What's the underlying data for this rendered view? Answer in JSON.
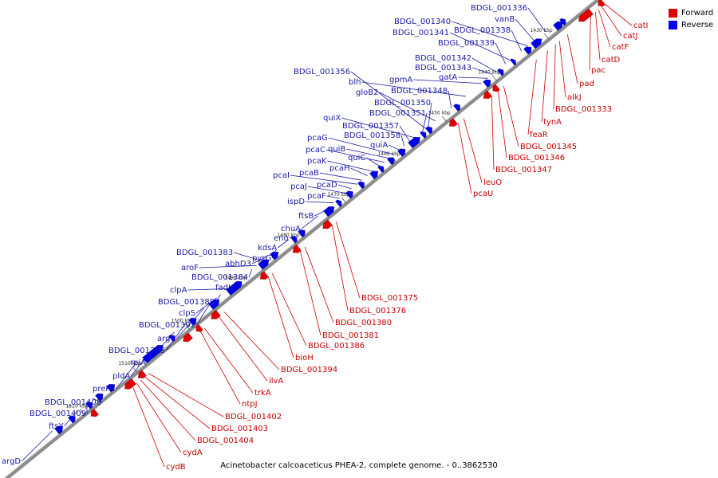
{
  "legend": {
    "items": [
      {
        "label": "Forward",
        "color": "#e00000"
      },
      {
        "label": "Reverse",
        "color": "#0000e6"
      }
    ]
  },
  "caption": "Acinetobacter calcoaceticus PHEA-2, complete genome. - 0..3862530",
  "colors": {
    "forward": "#e00000",
    "reverse": "#0000e6",
    "forward_line": "#d00000",
    "reverse_line": "#1a1aa6",
    "backbone": "#9a9a9a"
  },
  "ticks": [
    "1430 kbp",
    "1440 kbp",
    "1450 kbp",
    "1460 kbp",
    "1470 kbp",
    "1480 kbp",
    "1490 kbp",
    "1500 kbp",
    "1510 kbp",
    "1520 kbp"
  ],
  "reverse_labels": [
    "argD",
    "ftsY",
    "BDGL_001409",
    "BDGL_001408",
    "preP2",
    "pldA",
    "rpiA",
    "BDGL_001395",
    "argC",
    "BDGL_001392",
    "clpS",
    "BDGL_001389",
    "clpA",
    "fadH",
    "BDGL_001384",
    "aroF",
    "BDGL_001383",
    "abhD3",
    "pyrG",
    "kdsA",
    "eno",
    "chuA",
    "ftsB",
    "ispD",
    "pcaF",
    "pcaJ",
    "pcaD",
    "pcaI",
    "pcaB",
    "pcaH",
    "pcaK",
    "quiC",
    "pcaC",
    "quiB",
    "pcaG",
    "quiA",
    "BDGL_001358",
    "BDGL_001357",
    "quiX",
    "BDGL_001351",
    "BDGL_001350",
    "gloB2",
    "BDGL_001348",
    "blh",
    "gpmA",
    "BDGL_001356",
    "gatA",
    "BDGL_001343",
    "BDGL_001342",
    "BDGL_001339",
    "BDGL_001341",
    "BDGL_001338",
    "BDGL_001340",
    "vanB",
    "BDGL_001336"
  ],
  "forward_labels": [
    "catI",
    "catJ",
    "catF",
    "catD",
    "pac",
    "pad",
    "alkJ",
    "BDGL_001333",
    "tynA",
    "feaR",
    "BDGL_001345",
    "BDGL_001346",
    "BDGL_001347",
    "leuO",
    "pcaU",
    "BDGL_001375",
    "BDGL_001376",
    "BDGL_001380",
    "BDGL_001381",
    "BDGL_001386",
    "bioH",
    "BDGL_001394",
    "ilvA",
    "trkA",
    "ntpJ",
    "BDGL_001402",
    "BDGL_001403",
    "BDGL_001404",
    "cydA",
    "cydB"
  ]
}
